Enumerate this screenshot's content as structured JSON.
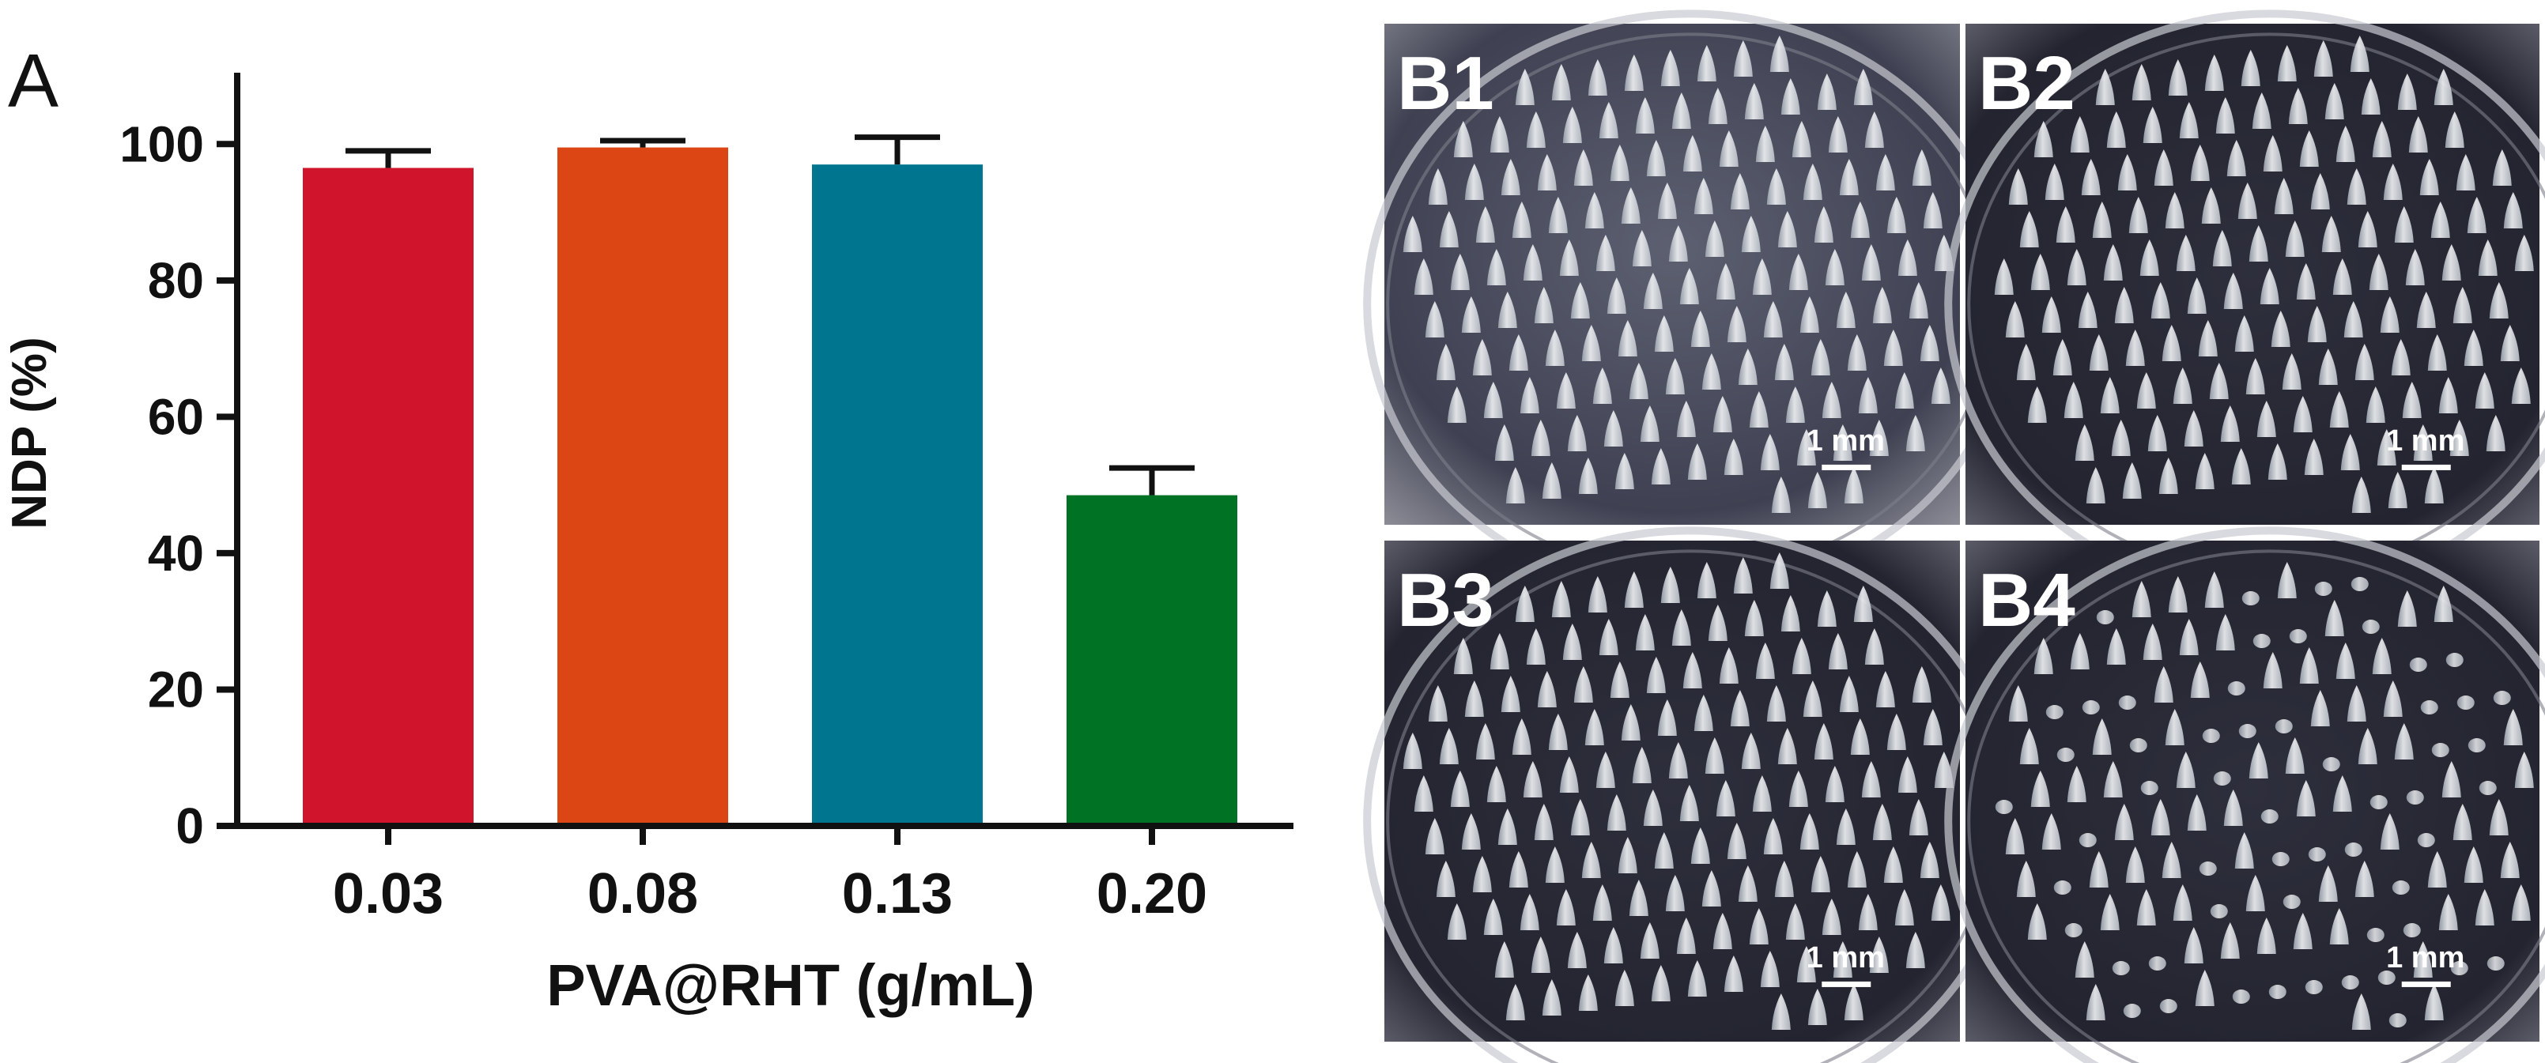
{
  "chart_data": {
    "type": "bar",
    "panel_label": "A",
    "title": "",
    "xlabel": "PVA@RHT (g/mL)",
    "ylabel": "NDP (%)",
    "ylim": [
      0,
      110
    ],
    "yticks": [
      0,
      20,
      40,
      60,
      80,
      100
    ],
    "grid": false,
    "categories": [
      "0.03",
      "0.08",
      "0.13",
      "0.20"
    ],
    "values": [
      96.5,
      99.5,
      97,
      48.5
    ],
    "errors": [
      2.5,
      1,
      4,
      4
    ],
    "colors": [
      "#d0142c",
      "#dc4614",
      "#007590",
      "#007224"
    ]
  },
  "micrographs": [
    {
      "label": "B1",
      "scale": "1 mm",
      "shape": "cone",
      "seed": 1
    },
    {
      "label": "B2",
      "scale": "1 mm",
      "shape": "cone",
      "seed": 2
    },
    {
      "label": "B3",
      "scale": "1 mm",
      "shape": "cone",
      "seed": 3
    },
    {
      "label": "B4",
      "scale": "1 mm",
      "shape": "mixed",
      "seed": 4
    }
  ]
}
